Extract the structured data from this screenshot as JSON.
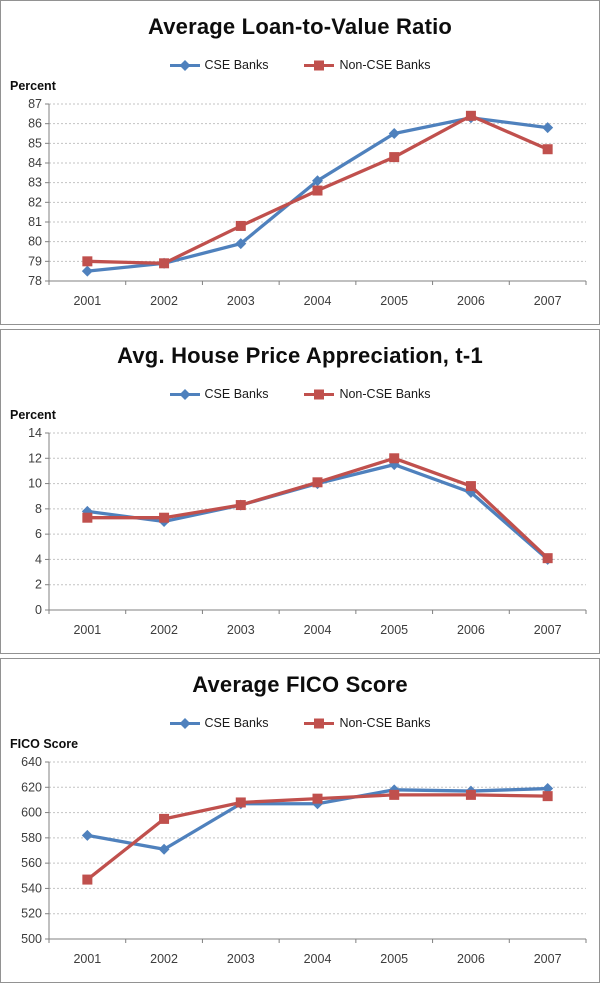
{
  "accent_colors": {
    "cse_banks": "#4F81BD",
    "non_cse_banks": "#C0504D"
  },
  "axis_colors": {
    "gridline": "#c3c3c3",
    "axis_line": "#808080"
  },
  "chart_data": [
    {
      "type": "line",
      "title": "Average Loan-to-Value Ratio",
      "ylabel": "Percent",
      "xlabel": "",
      "categories": [
        "2001",
        "2002",
        "2003",
        "2004",
        "2005",
        "2006",
        "2007"
      ],
      "series": [
        {
          "id": "cse-banks",
          "name": "CSE Banks",
          "color": "#4F81BD",
          "marker": "diamond",
          "values": [
            78.5,
            78.9,
            79.9,
            83.1,
            85.5,
            86.3,
            85.8
          ]
        },
        {
          "id": "non-cse-banks",
          "name": "Non-CSE Banks",
          "color": "#C0504D",
          "marker": "square",
          "values": [
            79.0,
            78.9,
            80.8,
            82.6,
            84.3,
            86.4,
            84.7
          ]
        }
      ],
      "ylim": [
        78,
        87
      ],
      "ytick_step": 1,
      "grid": true,
      "legend_position": "top"
    },
    {
      "type": "line",
      "title": "Avg. House Price Appreciation, t-1",
      "ylabel": "Percent",
      "xlabel": "",
      "categories": [
        "2001",
        "2002",
        "2003",
        "2004",
        "2005",
        "2006",
        "2007"
      ],
      "series": [
        {
          "id": "cse-banks",
          "name": "CSE Banks",
          "color": "#4F81BD",
          "marker": "diamond",
          "values": [
            7.8,
            7.0,
            8.3,
            10.0,
            11.5,
            9.3,
            4.0
          ]
        },
        {
          "id": "non-cse-banks",
          "name": "Non-CSE Banks",
          "color": "#C0504D",
          "marker": "square",
          "values": [
            7.3,
            7.3,
            8.3,
            10.1,
            12.0,
            9.8,
            4.1
          ]
        }
      ],
      "ylim": [
        0,
        14
      ],
      "ytick_step": 2,
      "grid": true,
      "legend_position": "top"
    },
    {
      "type": "line",
      "title": "Average FICO Score",
      "ylabel": "FICO Score",
      "xlabel": "",
      "categories": [
        "2001",
        "2002",
        "2003",
        "2004",
        "2005",
        "2006",
        "2007"
      ],
      "series": [
        {
          "id": "cse-banks",
          "name": "CSE Banks",
          "color": "#4F81BD",
          "marker": "diamond",
          "values": [
            582,
            571,
            607,
            607,
            618,
            617,
            619
          ]
        },
        {
          "id": "non-cse-banks",
          "name": "Non-CSE Banks",
          "color": "#C0504D",
          "marker": "square",
          "values": [
            547,
            595,
            608,
            611,
            614,
            614,
            613
          ]
        }
      ],
      "ylim": [
        500,
        640
      ],
      "ytick_step": 20,
      "grid": true,
      "legend_position": "top"
    }
  ]
}
